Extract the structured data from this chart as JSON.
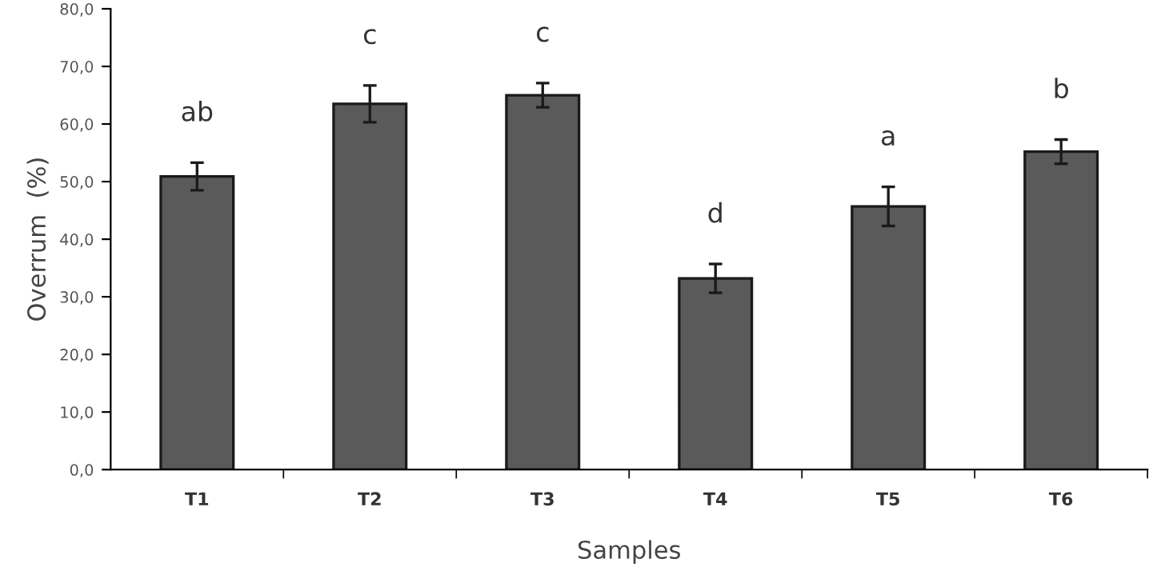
{
  "chart_data": {
    "type": "bar",
    "xlabel": "Samples",
    "ylabel": "Overrum  (%)",
    "categories": [
      "T1",
      "T2",
      "T3",
      "T4",
      "T5",
      "T6"
    ],
    "values": [
      50.9,
      63.5,
      65.0,
      33.2,
      45.7,
      55.2
    ],
    "errors": [
      2.4,
      3.2,
      2.1,
      2.5,
      3.4,
      2.1
    ],
    "color": "#5a5a5a",
    "ylim": [
      0,
      80
    ],
    "yticks": [
      {
        "value": 0,
        "label": "0,0"
      },
      {
        "value": 10,
        "label": "10,0"
      },
      {
        "value": 20,
        "label": "20,0"
      },
      {
        "value": 30,
        "label": "30,0"
      },
      {
        "value": 40,
        "label": "40,0"
      },
      {
        "value": 50,
        "label": "50,0"
      },
      {
        "value": 60,
        "label": "60,0"
      },
      {
        "value": 70,
        "label": "70,0"
      },
      {
        "value": 80,
        "label": "80,0"
      }
    ],
    "annotations": [
      "ab",
      "c",
      "c",
      "d",
      "a",
      "b"
    ],
    "grid": false
  }
}
